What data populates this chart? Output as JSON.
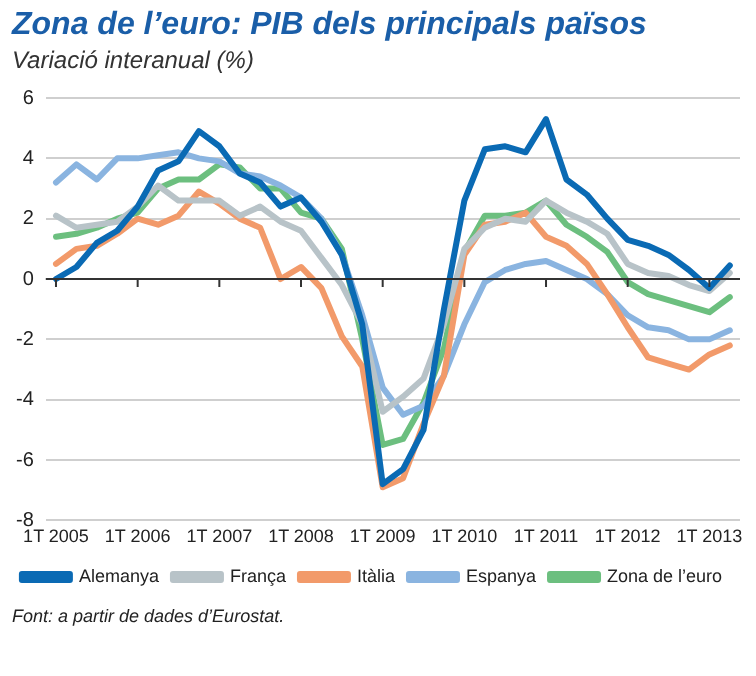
{
  "chart_data": {
    "type": "line",
    "title": "Zona de l’euro: PIB dels principals països",
    "subtitle": "Variació interanual (%)",
    "annotations": [
      "Font: a partir de dades d’Eurostat."
    ],
    "categories": [
      "1T 2005",
      null,
      null,
      null,
      "1T 2006",
      null,
      null,
      null,
      "1T 2007",
      null,
      null,
      null,
      "1T 2008",
      null,
      null,
      null,
      "1T 2009",
      null,
      null,
      null,
      "1T 2010",
      null,
      null,
      null,
      "1T 2011",
      null,
      null,
      null,
      "1T 2012",
      null,
      null,
      null,
      "1T 2013",
      null
    ],
    "series": [
      {
        "name": "Alemanya",
        "color": "#0a6ab4",
        "values": [
          0,
          0.4,
          1.2,
          1.6,
          2.4,
          3.6,
          3.9,
          4.9,
          4.4,
          3.5,
          3.2,
          2.4,
          2.7,
          1.9,
          0.8,
          -1.5,
          -6.8,
          -6.3,
          -5,
          -1,
          2.6,
          4.3,
          4.4,
          4.2,
          5.3,
          3.3,
          2.8,
          2,
          1.3,
          1.1,
          0.8,
          0.3,
          -0.3,
          0.45
        ]
      },
      {
        "name": "França",
        "color": "#b8c3c8",
        "values": [
          2.1,
          1.7,
          1.8,
          1.9,
          2.4,
          3.1,
          2.6,
          2.6,
          2.6,
          2.1,
          2.4,
          1.9,
          1.6,
          0.7,
          -0.2,
          -1.5,
          -4.4,
          -3.9,
          -3.3,
          -1.5,
          1,
          1.7,
          2,
          1.9,
          2.6,
          2.2,
          1.9,
          1.5,
          0.5,
          0.2,
          0.1,
          -0.2,
          -0.4,
          0.2
        ]
      },
      {
        "name": "Itàlia",
        "color": "#f29a6a",
        "values": [
          0.5,
          1,
          1.1,
          1.5,
          2,
          1.8,
          2.1,
          2.9,
          2.5,
          2,
          1.7,
          0,
          0.4,
          -0.3,
          -1.9,
          -2.9,
          -6.9,
          -6.6,
          -4.8,
          -3.2,
          0.8,
          1.8,
          1.9,
          2.2,
          1.4,
          1.1,
          0.5,
          -0.5,
          -1.6,
          -2.6,
          -2.8,
          -3,
          -2.5,
          -2.2
        ]
      },
      {
        "name": "Espanya",
        "color": "#8ab4e0",
        "values": [
          3.2,
          3.8,
          3.3,
          4,
          4,
          4.1,
          4.2,
          4,
          3.9,
          3.5,
          3.4,
          3.1,
          2.7,
          2,
          0.8,
          -1.2,
          -3.6,
          -4.5,
          -4.2,
          -3.2,
          -1.5,
          -0.1,
          0.3,
          0.5,
          0.6,
          0.3,
          0,
          -0.5,
          -1.2,
          -1.6,
          -1.7,
          -2,
          -2,
          -1.7
        ]
      },
      {
        "name": "Zona de l’euro",
        "color": "#6cbf7f",
        "values": [
          1.4,
          1.5,
          1.7,
          2,
          2.2,
          3,
          3.3,
          3.3,
          3.8,
          3.7,
          3,
          3,
          2.2,
          2,
          1,
          -2,
          -5.5,
          -5.3,
          -4.1,
          -2.3,
          0.9,
          2.1,
          2.1,
          2.2,
          2.6,
          1.8,
          1.4,
          0.9,
          -0.1,
          -0.5,
          -0.7,
          -0.9,
          -1.1,
          -0.6
        ]
      }
    ],
    "ylim": [
      -8,
      6
    ],
    "yticks": [
      -8,
      -6,
      -4,
      -2,
      0,
      2,
      4,
      6
    ],
    "grid": "y",
    "legend": "bottom",
    "marker": "none",
    "line_style": "solid"
  }
}
